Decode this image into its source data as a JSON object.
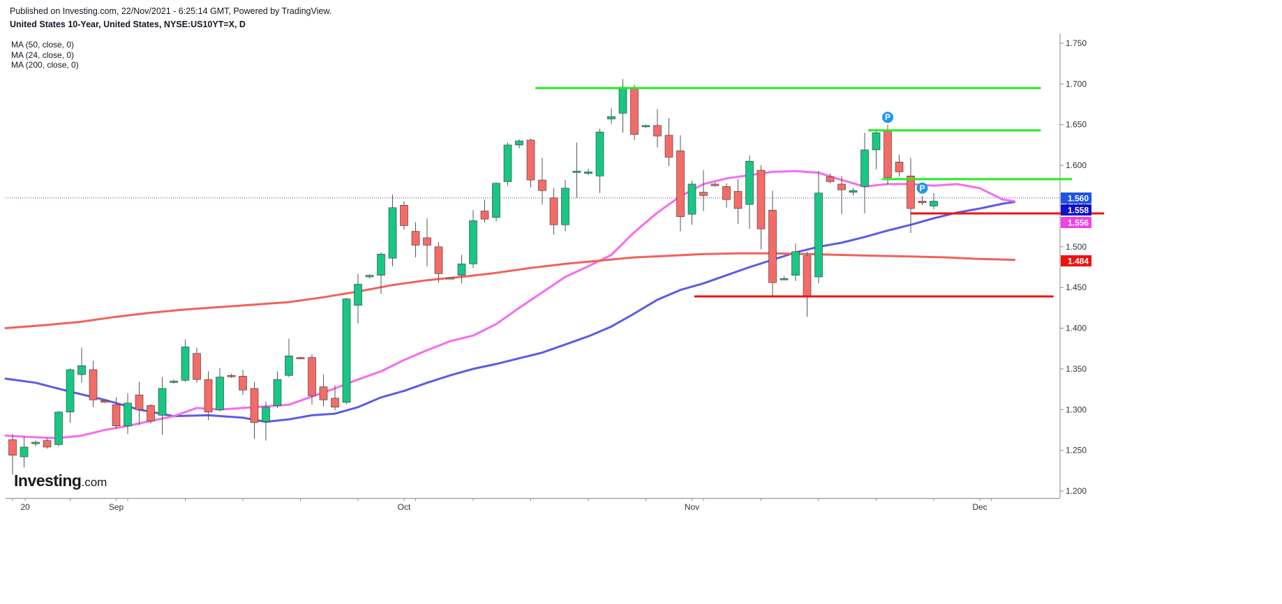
{
  "header": {
    "published": "Published on Investing.com, 22/Nov/2021 - 6:25:14 GMT, Powered by TradingView.",
    "symbol": "United States 10-Year, United States, NYSE:US10YT=X, D"
  },
  "legend": [
    "MA (50, close, 0)",
    "MA (24, close, 0)",
    "MA (200, close, 0)"
  ],
  "logo": {
    "main": "Investing",
    "suffix": ".com"
  },
  "colors": {
    "up": "#17c784",
    "down": "#f56b67",
    "wick": "#555555",
    "ma50": "#5b5be8",
    "ma24": "#f56cf0",
    "ma200": "#f2605a",
    "support": "#ee1111",
    "resistance": "#22ee22",
    "price_badge": "#1e53e5",
    "pivot_badge": "#1f96f3",
    "current_line": "#3344cc"
  },
  "chart_data": {
    "type": "candlestick",
    "title": "United States 10-Year, United States, NYSE:US10YT=X, D",
    "ylim": [
      1.195,
      1.765
    ],
    "yticks": [
      "1.200",
      "1.250",
      "1.300",
      "1.350",
      "1.400",
      "1.450",
      "1.500",
      "1.550",
      "1.600",
      "1.650",
      "1.700",
      "1.750"
    ],
    "x_labels": [
      "20",
      "Sep",
      "Oct",
      "Nov",
      "Dec"
    ],
    "candles": [
      {
        "d": "2021-08-20",
        "o": 1.263,
        "h": 1.27,
        "l": 1.22,
        "c": 1.244
      },
      {
        "d": "2021-08-23",
        "o": 1.242,
        "h": 1.267,
        "l": 1.229,
        "c": 1.254
      },
      {
        "d": "2021-08-24",
        "o": 1.258,
        "h": 1.262,
        "l": 1.255,
        "c": 1.26
      },
      {
        "d": "2021-08-25",
        "o": 1.262,
        "h": 1.265,
        "l": 1.252,
        "c": 1.254
      },
      {
        "d": "2021-08-26",
        "o": 1.257,
        "h": 1.298,
        "l": 1.255,
        "c": 1.297
      },
      {
        "d": "2021-08-27",
        "o": 1.297,
        "h": 1.351,
        "l": 1.284,
        "c": 1.349
      },
      {
        "d": "2021-08-30",
        "o": 1.343,
        "h": 1.376,
        "l": 1.333,
        "c": 1.354
      },
      {
        "d": "2021-08-31",
        "o": 1.349,
        "h": 1.36,
        "l": 1.303,
        "c": 1.312
      },
      {
        "d": "2021-09-01",
        "o": 1.311,
        "h": 1.311,
        "l": 1.308,
        "c": 1.309
      },
      {
        "d": "2021-09-02",
        "o": 1.306,
        "h": 1.315,
        "l": 1.276,
        "c": 1.28
      },
      {
        "d": "2021-09-03",
        "o": 1.28,
        "h": 1.32,
        "l": 1.27,
        "c": 1.308
      },
      {
        "d": "2021-09-07",
        "o": 1.318,
        "h": 1.334,
        "l": 1.281,
        "c": 1.3
      },
      {
        "d": "2021-09-08",
        "o": 1.305,
        "h": 1.307,
        "l": 1.283,
        "c": 1.286
      },
      {
        "d": "2021-09-09",
        "o": 1.293,
        "h": 1.34,
        "l": 1.269,
        "c": 1.326
      },
      {
        "d": "2021-09-10",
        "o": 1.334,
        "h": 1.337,
        "l": 1.332,
        "c": 1.335
      },
      {
        "d": "2021-09-13",
        "o": 1.336,
        "h": 1.386,
        "l": 1.334,
        "c": 1.377
      },
      {
        "d": "2021-09-14",
        "o": 1.369,
        "h": 1.376,
        "l": 1.333,
        "c": 1.337
      },
      {
        "d": "2021-09-15",
        "o": 1.337,
        "h": 1.347,
        "l": 1.287,
        "c": 1.297
      },
      {
        "d": "2021-09-16",
        "o": 1.3,
        "h": 1.351,
        "l": 1.298,
        "c": 1.34
      },
      {
        "d": "2021-09-17",
        "o": 1.342,
        "h": 1.344,
        "l": 1.339,
        "c": 1.341
      },
      {
        "d": "2021-09-20",
        "o": 1.341,
        "h": 1.349,
        "l": 1.318,
        "c": 1.324
      },
      {
        "d": "2021-09-21",
        "o": 1.326,
        "h": 1.334,
        "l": 1.264,
        "c": 1.284
      },
      {
        "d": "2021-09-22",
        "o": 1.285,
        "h": 1.31,
        "l": 1.262,
        "c": 1.303
      },
      {
        "d": "2021-09-23",
        "o": 1.305,
        "h": 1.347,
        "l": 1.302,
        "c": 1.337
      },
      {
        "d": "2021-09-24",
        "o": 1.342,
        "h": 1.387,
        "l": 1.34,
        "c": 1.366
      },
      {
        "d": "2021-09-27",
        "o": 1.364,
        "h": 1.365,
        "l": 1.362,
        "c": 1.363
      },
      {
        "d": "2021-09-28",
        "o": 1.364,
        "h": 1.368,
        "l": 1.306,
        "c": 1.317
      },
      {
        "d": "2021-09-29",
        "o": 1.328,
        "h": 1.343,
        "l": 1.304,
        "c": 1.312
      },
      {
        "d": "2021-09-30",
        "o": 1.314,
        "h": 1.33,
        "l": 1.299,
        "c": 1.303
      },
      {
        "d": "2021-10-01",
        "o": 1.309,
        "h": 1.437,
        "l": 1.307,
        "c": 1.436
      },
      {
        "d": "2021-10-04",
        "o": 1.428,
        "h": 1.467,
        "l": 1.406,
        "c": 1.454
      },
      {
        "d": "2021-10-05",
        "o": 1.463,
        "h": 1.466,
        "l": 1.461,
        "c": 1.465
      },
      {
        "d": "2021-10-06",
        "o": 1.465,
        "h": 1.493,
        "l": 1.442,
        "c": 1.491
      },
      {
        "d": "2021-10-07",
        "o": 1.486,
        "h": 1.564,
        "l": 1.476,
        "c": 1.548
      },
      {
        "d": "2021-10-08",
        "o": 1.551,
        "h": 1.556,
        "l": 1.521,
        "c": 1.526
      },
      {
        "d": "2021-10-11",
        "o": 1.519,
        "h": 1.53,
        "l": 1.487,
        "c": 1.502
      },
      {
        "d": "2021-10-12",
        "o": 1.511,
        "h": 1.535,
        "l": 1.476,
        "c": 1.502
      },
      {
        "d": "2021-10-13",
        "o": 1.5,
        "h": 1.506,
        "l": 1.456,
        "c": 1.467
      },
      {
        "d": "2021-10-14",
        "o": 1.462,
        "h": 1.462,
        "l": 1.46,
        "c": 1.461
      },
      {
        "d": "2021-10-15",
        "o": 1.465,
        "h": 1.49,
        "l": 1.455,
        "c": 1.479
      },
      {
        "d": "2021-10-18",
        "o": 1.479,
        "h": 1.545,
        "l": 1.474,
        "c": 1.532
      },
      {
        "d": "2021-10-19",
        "o": 1.544,
        "h": 1.558,
        "l": 1.53,
        "c": 1.534
      },
      {
        "d": "2021-10-20",
        "o": 1.536,
        "h": 1.579,
        "l": 1.531,
        "c": 1.578
      },
      {
        "d": "2021-10-21",
        "o": 1.58,
        "h": 1.628,
        "l": 1.575,
        "c": 1.625
      },
      {
        "d": "2021-10-22",
        "o": 1.625,
        "h": 1.632,
        "l": 1.621,
        "c": 1.63
      },
      {
        "d": "2021-10-25",
        "o": 1.631,
        "h": 1.633,
        "l": 1.573,
        "c": 1.582
      },
      {
        "d": "2021-10-26",
        "o": 1.582,
        "h": 1.609,
        "l": 1.552,
        "c": 1.569
      },
      {
        "d": "2021-10-27",
        "o": 1.56,
        "h": 1.572,
        "l": 1.515,
        "c": 1.527
      },
      {
        "d": "2021-10-28",
        "o": 1.527,
        "h": 1.582,
        "l": 1.519,
        "c": 1.572
      },
      {
        "d": "2021-10-29",
        "o": 1.592,
        "h": 1.628,
        "l": 1.56,
        "c": 1.593
      },
      {
        "d": "2021-11-01",
        "o": 1.59,
        "h": 1.596,
        "l": 1.588,
        "c": 1.592
      },
      {
        "d": "2021-11-02",
        "o": 1.587,
        "h": 1.645,
        "l": 1.566,
        "c": 1.641
      },
      {
        "d": "2021-11-03",
        "o": 1.657,
        "h": 1.67,
        "l": 1.651,
        "c": 1.66
      },
      {
        "d": "2021-11-04",
        "o": 1.664,
        "h": 1.706,
        "l": 1.64,
        "c": 1.696
      },
      {
        "d": "2021-11-05",
        "o": 1.694,
        "h": 1.699,
        "l": 1.631,
        "c": 1.638
      },
      {
        "d": "2021-11-08",
        "o": 1.648,
        "h": 1.65,
        "l": 1.646,
        "c": 1.649
      },
      {
        "d": "2021-11-09",
        "o": 1.649,
        "h": 1.669,
        "l": 1.622,
        "c": 1.636
      },
      {
        "d": "2021-11-10",
        "o": 1.637,
        "h": 1.658,
        "l": 1.599,
        "c": 1.61
      },
      {
        "d": "2021-11-11",
        "o": 1.618,
        "h": 1.637,
        "l": 1.519,
        "c": 1.537
      },
      {
        "d": "2021-11-12",
        "o": 1.54,
        "h": 1.581,
        "l": 1.527,
        "c": 1.577
      },
      {
        "d": "2021-11-15",
        "o": 1.567,
        "h": 1.594,
        "l": 1.544,
        "c": 1.563
      },
      {
        "d": "2021-11-16",
        "o": 1.577,
        "h": 1.579,
        "l": 1.574,
        "c": 1.575
      },
      {
        "d": "2021-11-17",
        "o": 1.574,
        "h": 1.578,
        "l": 1.548,
        "c": 1.558
      },
      {
        "d": "2021-11-18",
        "o": 1.568,
        "h": 1.583,
        "l": 1.528,
        "c": 1.547
      },
      {
        "d": "2021-11-19",
        "o": 1.552,
        "h": 1.612,
        "l": 1.522,
        "c": 1.605
      }
    ],
    "candles_part2": [
      {
        "d": "2021-11-22",
        "o": 1.594,
        "h": 1.6,
        "l": 1.497,
        "c": 1.522
      },
      {
        "d": "2021-11-23",
        "o": 1.545,
        "h": 1.569,
        "l": 1.438,
        "c": 1.456
      },
      {
        "d": "2021-11-24",
        "o": 1.461,
        "h": 1.464,
        "l": 1.459,
        "c": 1.461
      },
      {
        "d": "2021-11-25",
        "o": 1.465,
        "h": 1.504,
        "l": 1.458,
        "c": 1.494
      },
      {
        "d": "2021-11-26",
        "o": 1.489,
        "h": 1.494,
        "l": 1.414,
        "c": 1.439
      },
      {
        "d": "2021-11-29",
        "o": 1.463,
        "h": 1.593,
        "l": 1.455,
        "c": 1.566
      },
      {
        "d": "2021-11-30",
        "o": 1.586,
        "h": 1.59,
        "l": 1.578,
        "c": 1.58
      },
      {
        "d": "2021-12-01",
        "o": 1.577,
        "h": 1.587,
        "l": 1.54,
        "c": 1.57
      },
      {
        "d": "2021-12-02",
        "o": 1.567,
        "h": 1.572,
        "l": 1.563,
        "c": 1.569
      },
      {
        "d": "2021-12-03",
        "o": 1.574,
        "h": 1.64,
        "l": 1.541,
        "c": 1.619
      },
      {
        "d": "2021-12-06",
        "o": 1.619,
        "h": 1.645,
        "l": 1.595,
        "c": 1.64
      },
      {
        "d": "2021-12-07",
        "o": 1.642,
        "h": 1.65,
        "l": 1.576,
        "c": 1.585
      },
      {
        "d": "2021-12-08",
        "o": 1.604,
        "h": 1.613,
        "l": 1.586,
        "c": 1.592
      },
      {
        "d": "2021-12-09",
        "o": 1.587,
        "h": 1.609,
        "l": 1.517,
        "c": 1.547
      },
      {
        "d": "2021-12-10",
        "o": 1.556,
        "h": 1.562,
        "l": 1.551,
        "c": 1.554
      },
      {
        "d": "2021-12-13",
        "o": 1.55,
        "h": 1.566,
        "l": 1.546,
        "c": 1.556
      }
    ],
    "series": [
      {
        "name": "MA (50, close, 0)",
        "color": "#5b5be8",
        "points": [
          [
            0,
            1.338
          ],
          [
            2,
            1.333
          ],
          [
            5,
            1.322
          ],
          [
            8,
            1.312
          ],
          [
            11,
            1.3
          ],
          [
            14,
            1.292
          ],
          [
            17,
            1.293
          ],
          [
            20,
            1.29
          ],
          [
            22,
            1.285
          ],
          [
            24,
            1.288
          ],
          [
            26,
            1.293
          ],
          [
            28,
            1.295
          ],
          [
            30,
            1.303
          ],
          [
            32,
            1.315
          ],
          [
            34,
            1.323
          ],
          [
            36,
            1.333
          ],
          [
            38,
            1.342
          ],
          [
            40,
            1.35
          ],
          [
            42,
            1.356
          ],
          [
            44,
            1.363
          ],
          [
            46,
            1.37
          ],
          [
            48,
            1.38
          ],
          [
            50,
            1.39
          ],
          [
            52,
            1.402
          ],
          [
            54,
            1.418
          ],
          [
            56,
            1.435
          ],
          [
            58,
            1.447
          ],
          [
            60,
            1.455
          ],
          [
            62,
            1.465
          ],
          [
            64,
            1.475
          ],
          [
            66,
            1.484
          ],
          [
            68,
            1.493
          ],
          [
            70,
            1.5
          ],
          [
            72,
            1.505
          ],
          [
            74,
            1.512
          ],
          [
            76,
            1.52
          ],
          [
            78,
            1.527
          ],
          [
            80,
            1.535
          ],
          [
            82,
            1.542
          ],
          [
            84,
            1.547
          ],
          [
            86,
            1.553
          ],
          [
            87,
            1.555
          ]
        ]
      },
      {
        "name": "MA (24, close, 0)",
        "color": "#f56cf0",
        "points": [
          [
            0,
            1.268
          ],
          [
            2,
            1.266
          ],
          [
            4,
            1.265
          ],
          [
            6,
            1.268
          ],
          [
            8,
            1.275
          ],
          [
            10,
            1.28
          ],
          [
            12,
            1.286
          ],
          [
            14,
            1.292
          ],
          [
            16,
            1.302
          ],
          [
            18,
            1.3
          ],
          [
            20,
            1.302
          ],
          [
            22,
            1.304
          ],
          [
            24,
            1.306
          ],
          [
            26,
            1.316
          ],
          [
            28,
            1.326
          ],
          [
            30,
            1.337
          ],
          [
            32,
            1.347
          ],
          [
            34,
            1.361
          ],
          [
            36,
            1.373
          ],
          [
            38,
            1.384
          ],
          [
            40,
            1.391
          ],
          [
            42,
            1.405
          ],
          [
            44,
            1.425
          ],
          [
            46,
            1.444
          ],
          [
            48,
            1.463
          ],
          [
            50,
            1.476
          ],
          [
            52,
            1.49
          ],
          [
            54,
            1.518
          ],
          [
            56,
            1.542
          ],
          [
            58,
            1.562
          ],
          [
            60,
            1.577
          ],
          [
            62,
            1.584
          ],
          [
            64,
            1.588
          ],
          [
            66,
            1.592
          ],
          [
            68,
            1.593
          ],
          [
            70,
            1.591
          ],
          [
            72,
            1.582
          ],
          [
            74,
            1.574
          ],
          [
            76,
            1.577
          ],
          [
            78,
            1.577
          ],
          [
            80,
            1.575
          ],
          [
            82,
            1.577
          ],
          [
            84,
            1.572
          ],
          [
            86,
            1.558
          ],
          [
            87,
            1.556
          ]
        ]
      },
      {
        "name": "MA (200, close, 0)",
        "color": "#f2605a",
        "points": [
          [
            0,
            1.4
          ],
          [
            3,
            1.404
          ],
          [
            6,
            1.408
          ],
          [
            9,
            1.414
          ],
          [
            12,
            1.419
          ],
          [
            15,
            1.423
          ],
          [
            18,
            1.426
          ],
          [
            21,
            1.429
          ],
          [
            24,
            1.432
          ],
          [
            27,
            1.438
          ],
          [
            30,
            1.445
          ],
          [
            33,
            1.453
          ],
          [
            36,
            1.459
          ],
          [
            39,
            1.463
          ],
          [
            42,
            1.468
          ],
          [
            45,
            1.474
          ],
          [
            48,
            1.479
          ],
          [
            51,
            1.483
          ],
          [
            54,
            1.487
          ],
          [
            57,
            1.489
          ],
          [
            60,
            1.491
          ],
          [
            63,
            1.492
          ],
          [
            66,
            1.492
          ],
          [
            69,
            1.491
          ],
          [
            72,
            1.49
          ],
          [
            75,
            1.489
          ],
          [
            78,
            1.488
          ],
          [
            81,
            1.487
          ],
          [
            84,
            1.485
          ],
          [
            87,
            1.484
          ]
        ]
      }
    ],
    "horizontal_lines": [
      {
        "kind": "resistance",
        "y": 1.695,
        "x1": 45.4,
        "x2": 89.3
      },
      {
        "kind": "resistance",
        "y": 1.643,
        "x1": 74.3,
        "x2": 89.3
      },
      {
        "kind": "resistance",
        "y": 1.583,
        "x1": 75.5,
        "x2": 92.0
      },
      {
        "kind": "support",
        "y": 1.541,
        "x1": 78.0,
        "x2": 94.8
      },
      {
        "kind": "support",
        "y": 1.439,
        "x1": 59.2,
        "x2": 90.4
      }
    ],
    "pivot_marks": [
      {
        "label": "P",
        "index": 76,
        "y": 1.659
      },
      {
        "label": "P",
        "index": 79,
        "y": 1.572
      }
    ],
    "current_price": 1.56,
    "price_labels": [
      {
        "value": "1.560",
        "color": "#1e53e5"
      },
      {
        "value": "1.558",
        "color": "#1010c8"
      },
      {
        "value": "1.556",
        "color": "#f040e8"
      },
      {
        "value": "1.484",
        "color": "#ee1111"
      }
    ]
  }
}
